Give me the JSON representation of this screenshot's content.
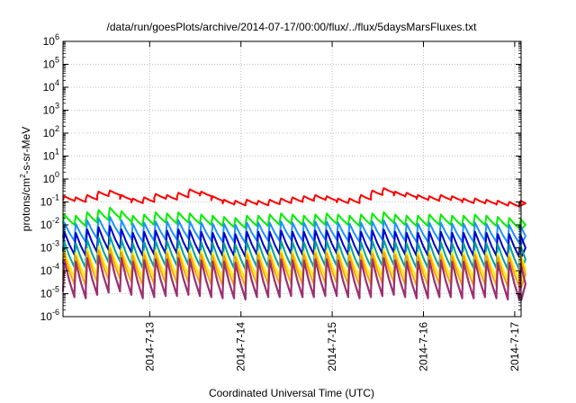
{
  "chart_data": {
    "type": "line",
    "title": "/data/run/goesPlots/archive/2014-07-17/00:00/flux/../flux/5daysMarsFluxes.txt",
    "xlabel": "Coordinated Universal Time (UTC)",
    "ylabel_parts": [
      "protons/cm",
      "2",
      "-s-sr-MeV"
    ],
    "yscale": "log",
    "ylim_exp": [
      -6,
      6
    ],
    "ytick_exps": [
      "-6",
      "-5",
      "-4",
      "-3",
      "-2",
      "-1",
      "0",
      "1",
      "2",
      "3",
      "4",
      "5",
      "6"
    ],
    "xlim_day": [
      12.05,
      17.07
    ],
    "xticks": [
      {
        "day": 13,
        "label": "2014-7-13"
      },
      {
        "day": 14,
        "label": "2014-7-14"
      },
      {
        "day": 15,
        "label": "2014-7-15"
      },
      {
        "day": 16,
        "label": "2014-7-16"
      },
      {
        "day": 17,
        "label": "2014-7-17"
      }
    ],
    "grid": true,
    "cycle_days": 0.125,
    "series": [
      {
        "color": "#ff0000",
        "stroke": 2.0,
        "peak_log": [
          -0.75,
          -0.8,
          -0.7,
          -0.55,
          -0.5,
          -0.7,
          -0.85,
          -0.8,
          -0.65,
          -0.7,
          -0.6,
          -0.45,
          -0.55,
          -0.75,
          -0.9,
          -0.95,
          -0.9,
          -0.95,
          -0.9,
          -0.85,
          -0.8,
          -0.75,
          -0.7,
          -0.75,
          -0.85,
          -0.85,
          -0.7,
          -0.5,
          -0.4,
          -0.55,
          -0.6,
          -0.7,
          -0.75,
          -0.7,
          -0.75,
          -0.85,
          -0.85,
          -0.9,
          -0.95,
          -1.0,
          -0.95
        ],
        "trough_drop": 0.2
      },
      {
        "color": "#00ee00",
        "stroke": 2.0,
        "peak_log": [
          -1.55,
          -1.6,
          -1.45,
          -1.35,
          -1.25,
          -1.4,
          -1.6,
          -1.55,
          -1.45,
          -1.5,
          -1.45,
          -1.5,
          -1.55,
          -1.6,
          -1.65,
          -1.7,
          -1.6,
          -1.6,
          -1.55,
          -1.5,
          -1.55,
          -1.6,
          -1.55,
          -1.5,
          -1.55,
          -1.6,
          -1.55,
          -1.5,
          -1.45,
          -1.55,
          -1.6,
          -1.6,
          -1.55,
          -1.55,
          -1.6,
          -1.6,
          -1.55,
          -1.6,
          -1.65,
          -1.7,
          -1.75
        ],
        "trough_drop": 0.45
      },
      {
        "color": "#1e90ff",
        "stroke": 2.0,
        "peak_log": [
          -1.9,
          -1.95,
          -1.8,
          -1.7,
          -1.65,
          -1.8,
          -1.95,
          -1.9,
          -1.85,
          -1.85,
          -1.8,
          -1.85,
          -1.9,
          -1.95,
          -1.95,
          -2.0,
          -1.9,
          -1.9,
          -1.9,
          -1.85,
          -1.9,
          -1.9,
          -1.85,
          -1.85,
          -1.9,
          -1.95,
          -1.9,
          -1.85,
          -1.8,
          -1.9,
          -1.95,
          -1.95,
          -1.9,
          -1.9,
          -1.95,
          -1.95,
          -1.9,
          -1.95,
          -2.0,
          -2.0,
          -2.05
        ],
        "trough_drop": 0.8
      },
      {
        "color": "#0000cc",
        "stroke": 2.0,
        "peak_log": [
          -2.3,
          -2.35,
          -2.2,
          -2.1,
          -2.05,
          -2.2,
          -2.35,
          -2.3,
          -2.25,
          -2.25,
          -2.2,
          -2.25,
          -2.3,
          -2.35,
          -2.35,
          -2.4,
          -2.3,
          -2.3,
          -2.3,
          -2.25,
          -2.3,
          -2.3,
          -2.25,
          -2.25,
          -2.3,
          -2.35,
          -2.3,
          -2.25,
          -2.2,
          -2.3,
          -2.35,
          -2.35,
          -2.3,
          -2.3,
          -2.35,
          -2.35,
          -2.3,
          -2.35,
          -2.4,
          -2.4,
          -2.45
        ],
        "trough_drop": 1.0
      },
      {
        "color": "#00a0a0",
        "stroke": 2.0,
        "peak_log": [
          -2.75,
          -2.8,
          -2.65,
          -2.55,
          -2.5,
          -2.65,
          -2.8,
          -2.75,
          -2.7,
          -2.7,
          -2.65,
          -2.7,
          -2.75,
          -2.8,
          -2.8,
          -2.85,
          -2.75,
          -2.75,
          -2.75,
          -2.7,
          -2.75,
          -2.75,
          -2.7,
          -2.7,
          -2.75,
          -2.8,
          -2.75,
          -2.7,
          -2.65,
          -2.75,
          -2.8,
          -2.8,
          -2.75,
          -2.75,
          -2.8,
          -2.8,
          -2.75,
          -2.8,
          -2.85,
          -2.85,
          -2.9
        ],
        "trough_drop": 1.1
      },
      {
        "color": "#ffee00",
        "stroke": 2.0,
        "peak_log": [
          -3.15,
          -3.2,
          -3.05,
          -2.95,
          -2.9,
          -3.05,
          -3.2,
          -3.15,
          -3.1,
          -3.1,
          -3.05,
          -3.1,
          -3.15,
          -3.2,
          -3.2,
          -3.25,
          -3.15,
          -3.15,
          -3.15,
          -3.1,
          -3.15,
          -3.15,
          -3.1,
          -3.1,
          -3.15,
          -3.2,
          -3.15,
          -3.1,
          -3.05,
          -3.15,
          -3.2,
          -3.2,
          -3.15,
          -3.15,
          -3.2,
          -3.2,
          -3.15,
          -3.2,
          -3.25,
          -3.25,
          -3.3
        ],
        "trough_drop": 1.15
      },
      {
        "color": "#ffa000",
        "stroke": 2.0,
        "peak_log": [
          -3.3,
          -3.35,
          -3.2,
          -3.1,
          -3.05,
          -3.2,
          -3.35,
          -3.3,
          -3.25,
          -3.25,
          -3.2,
          -3.25,
          -3.3,
          -3.35,
          -3.35,
          -3.4,
          -3.3,
          -3.3,
          -3.3,
          -3.25,
          -3.3,
          -3.3,
          -3.25,
          -3.25,
          -3.3,
          -3.35,
          -3.3,
          -3.25,
          -3.2,
          -3.3,
          -3.35,
          -3.35,
          -3.3,
          -3.3,
          -3.35,
          -3.35,
          -3.3,
          -3.35,
          -3.4,
          -3.4,
          -3.45
        ],
        "trough_drop": 1.3
      },
      {
        "color": "#9b3070",
        "stroke": 2.2,
        "peak_log": [
          -3.55,
          -3.6,
          -3.45,
          -3.35,
          -3.3,
          -3.45,
          -3.6,
          -3.55,
          -3.5,
          -3.5,
          -3.45,
          -3.5,
          -3.55,
          -3.6,
          -3.6,
          -3.65,
          -3.55,
          -3.55,
          -3.55,
          -3.5,
          -3.55,
          -3.55,
          -3.5,
          -3.5,
          -3.55,
          -3.6,
          -3.55,
          -3.5,
          -3.45,
          -3.55,
          -3.6,
          -3.6,
          -3.55,
          -3.55,
          -3.6,
          -3.6,
          -3.55,
          -3.6,
          -3.65,
          -3.65,
          -3.7
        ],
        "trough_drop": 1.6
      }
    ]
  }
}
